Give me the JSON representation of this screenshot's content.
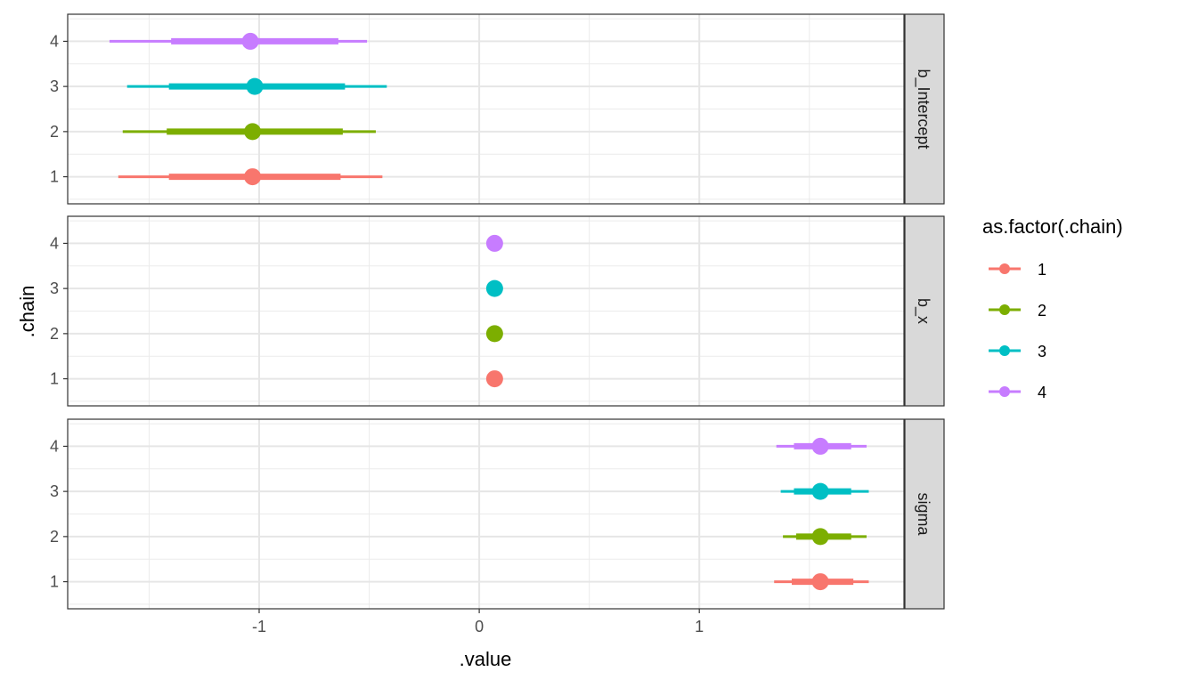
{
  "chart_data": {
    "type": "pointrange",
    "xlabel": ".value",
    "ylabel": ".chain",
    "xlim": [
      -1.87,
      1.93
    ],
    "x_ticks": [
      -1,
      0,
      1
    ],
    "x_tick_labels": [
      "-1",
      "0",
      "1"
    ],
    "y_categories": [
      "1",
      "2",
      "3",
      "4"
    ],
    "grid": true,
    "legend": {
      "title": "as.factor(.chain)",
      "position": "right",
      "entries": [
        "1",
        "2",
        "3",
        "4"
      ]
    },
    "colors": {
      "1": "#F8766D",
      "2": "#7CAE00",
      "3": "#00BFC4",
      "4": "#C77CFF"
    },
    "panels": [
      {
        "name": "b_Intercept",
        "points": [
          {
            "chain": "1",
            "median": -1.03,
            "inner": [
              -1.41,
              -0.63
            ],
            "outer": [
              -1.64,
              -0.44
            ]
          },
          {
            "chain": "2",
            "median": -1.03,
            "inner": [
              -1.42,
              -0.62
            ],
            "outer": [
              -1.62,
              -0.47
            ]
          },
          {
            "chain": "3",
            "median": -1.02,
            "inner": [
              -1.41,
              -0.61
            ],
            "outer": [
              -1.6,
              -0.42
            ]
          },
          {
            "chain": "4",
            "median": -1.04,
            "inner": [
              -1.4,
              -0.64
            ],
            "outer": [
              -1.68,
              -0.51
            ]
          }
        ]
      },
      {
        "name": "b_x",
        "points": [
          {
            "chain": "1",
            "median": 0.07,
            "inner": [
              0.06,
              0.08
            ],
            "outer": [
              0.055,
              0.085
            ]
          },
          {
            "chain": "2",
            "median": 0.07,
            "inner": [
              0.06,
              0.08
            ],
            "outer": [
              0.055,
              0.085
            ]
          },
          {
            "chain": "3",
            "median": 0.07,
            "inner": [
              0.06,
              0.08
            ],
            "outer": [
              0.055,
              0.085
            ]
          },
          {
            "chain": "4",
            "median": 0.07,
            "inner": [
              0.06,
              0.08
            ],
            "outer": [
              0.055,
              0.085
            ]
          }
        ]
      },
      {
        "name": "sigma",
        "points": [
          {
            "chain": "1",
            "median": 1.55,
            "inner": [
              1.42,
              1.7
            ],
            "outer": [
              1.34,
              1.77
            ]
          },
          {
            "chain": "2",
            "median": 1.55,
            "inner": [
              1.44,
              1.69
            ],
            "outer": [
              1.38,
              1.76
            ]
          },
          {
            "chain": "3",
            "median": 1.55,
            "inner": [
              1.43,
              1.69
            ],
            "outer": [
              1.37,
              1.77
            ]
          },
          {
            "chain": "4",
            "median": 1.55,
            "inner": [
              1.43,
              1.69
            ],
            "outer": [
              1.35,
              1.76
            ]
          }
        ]
      }
    ]
  }
}
